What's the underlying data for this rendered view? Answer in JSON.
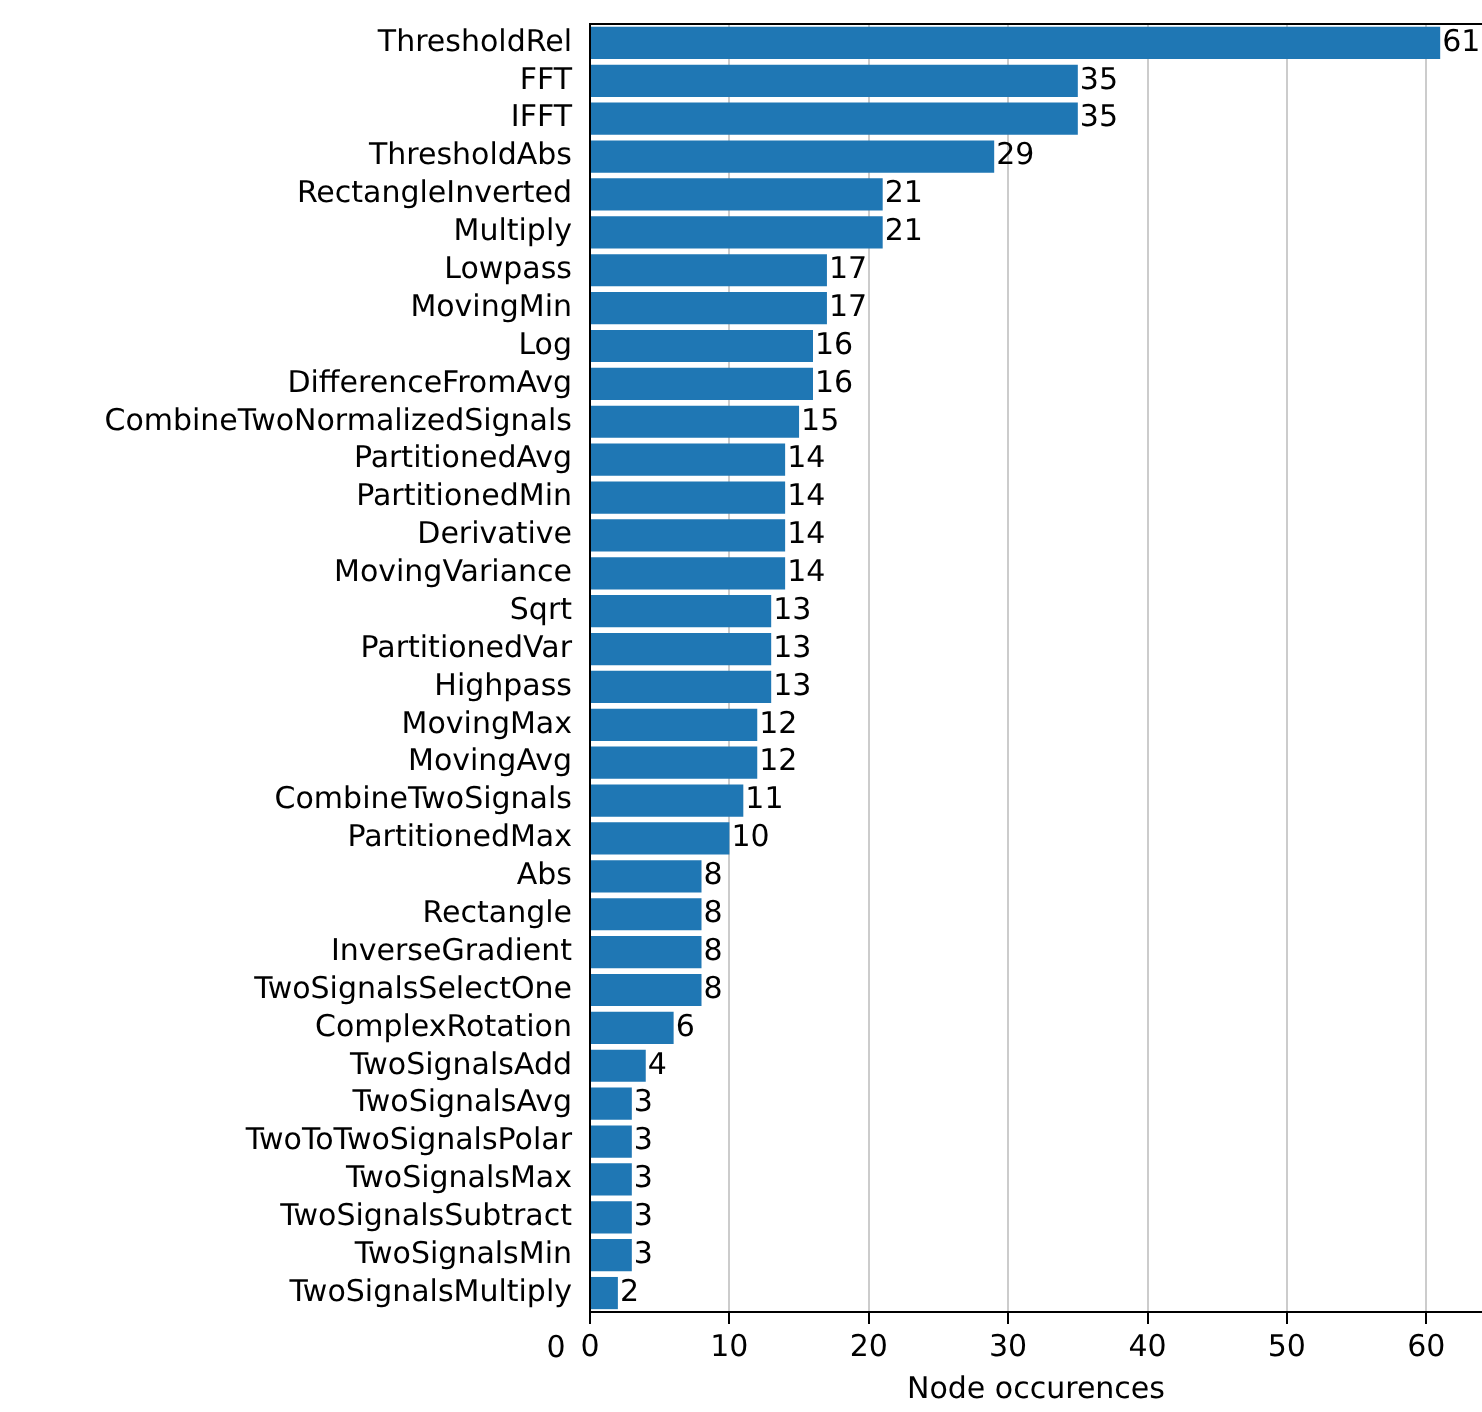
{
  "chart_data": {
    "type": "bar",
    "orientation": "horizontal",
    "xlabel": "Node occurences",
    "categories": [
      "ThresholdRel",
      "FFT",
      "IFFT",
      "ThresholdAbs",
      "RectangleInverted",
      "Multiply",
      "Lowpass",
      "MovingMin",
      "Log",
      "DifferenceFromAvg",
      "CombineTwoNormalizedSignals",
      "PartitionedAvg",
      "PartitionedMin",
      "Derivative",
      "MovingVariance",
      "Sqrt",
      "PartitionedVar",
      "Highpass",
      "MovingMax",
      "MovingAvg",
      "CombineTwoSignals",
      "PartitionedMax",
      "Abs",
      "Rectangle",
      "InverseGradient",
      "TwoSignalsSelectOne",
      "ComplexRotation",
      "TwoSignalsAdd",
      "TwoSignalsAvg",
      "TwoToTwoSignalsPolar",
      "TwoSignalsMax",
      "TwoSignalsSubtract",
      "TwoSignalsMin",
      "TwoSignalsMultiply"
    ],
    "values": [
      61,
      35,
      35,
      29,
      21,
      21,
      17,
      17,
      16,
      16,
      15,
      14,
      14,
      14,
      14,
      13,
      13,
      13,
      12,
      12,
      11,
      10,
      8,
      8,
      8,
      8,
      6,
      4,
      3,
      3,
      3,
      3,
      3,
      2
    ],
    "color": "#1f77b4",
    "xlim": [
      0,
      64
    ],
    "xticks": [
      0,
      10,
      20,
      30,
      40,
      50,
      60
    ],
    "grid": "x",
    "data_labels": true,
    "annotations": [
      "0"
    ]
  }
}
